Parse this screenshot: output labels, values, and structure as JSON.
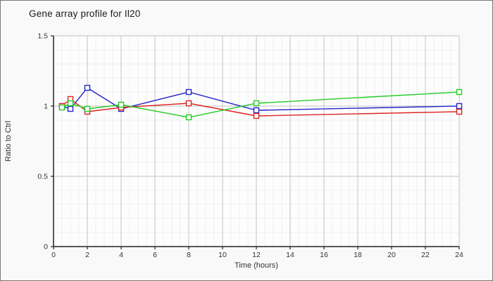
{
  "window": {
    "background": "#f9f9f9",
    "border_color": "#787878"
  },
  "chart_data": {
    "type": "line",
    "title": "Gene array profile for Il20",
    "xlabel": "Time (hours)",
    "ylabel": "Ratio to Ctrl",
    "xlim": [
      0,
      24
    ],
    "ylim": [
      0,
      1.5
    ],
    "x_major_ticks": [
      0,
      2,
      4,
      6,
      8,
      10,
      12,
      14,
      16,
      18,
      20,
      22,
      24
    ],
    "x_minor_step": 0.5,
    "y_major_ticks": [
      0,
      0.5,
      1,
      1.5
    ],
    "y_minor_step": 0.1,
    "grid": true,
    "legend": "none",
    "marker": "open-square",
    "x": [
      0.5,
      1,
      2,
      4,
      8,
      12,
      24
    ],
    "series": [
      {
        "name": "series-blue",
        "color": "#2222cc",
        "values": [
          1.0,
          0.98,
          1.13,
          0.98,
          1.1,
          0.97,
          1.0
        ]
      },
      {
        "name": "series-red",
        "color": "#dd2222",
        "values": [
          1.0,
          1.05,
          0.96,
          0.99,
          1.02,
          0.93,
          0.96
        ]
      },
      {
        "name": "series-green",
        "color": "#22cc22",
        "values": [
          0.99,
          1.02,
          0.98,
          1.01,
          0.92,
          1.02,
          1.1
        ]
      }
    ],
    "colors": {
      "plot_background": "#fdfdfd",
      "grid_major": "#c4c4c4",
      "grid_minor": "#efefef",
      "axis": "#222222",
      "tick_text": "#333333"
    }
  }
}
